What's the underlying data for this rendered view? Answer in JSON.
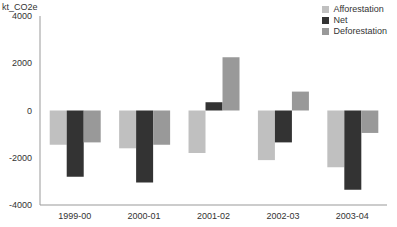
{
  "chart_data": {
    "type": "bar",
    "y_label": "kt_CO2e",
    "categories": [
      "1999-00",
      "2000-01",
      "2001-02",
      "2002-03",
      "2003-04"
    ],
    "series": [
      {
        "name": "Afforestation",
        "color": "#c0c0c0",
        "values": [
          -1450,
          -1600,
          -1800,
          -2100,
          -2400
        ]
      },
      {
        "name": "Net",
        "color": "#333333",
        "values": [
          -2800,
          -3050,
          350,
          -1350,
          -3350
        ]
      },
      {
        "name": "Deforestation",
        "color": "#999999",
        "values": [
          -1350,
          -1450,
          2250,
          800,
          -950
        ]
      }
    ],
    "ylim": [
      -4000,
      4000
    ],
    "yticks": [
      -4000,
      -2000,
      0,
      2000,
      4000
    ],
    "grid": false,
    "legend": "upper right"
  }
}
